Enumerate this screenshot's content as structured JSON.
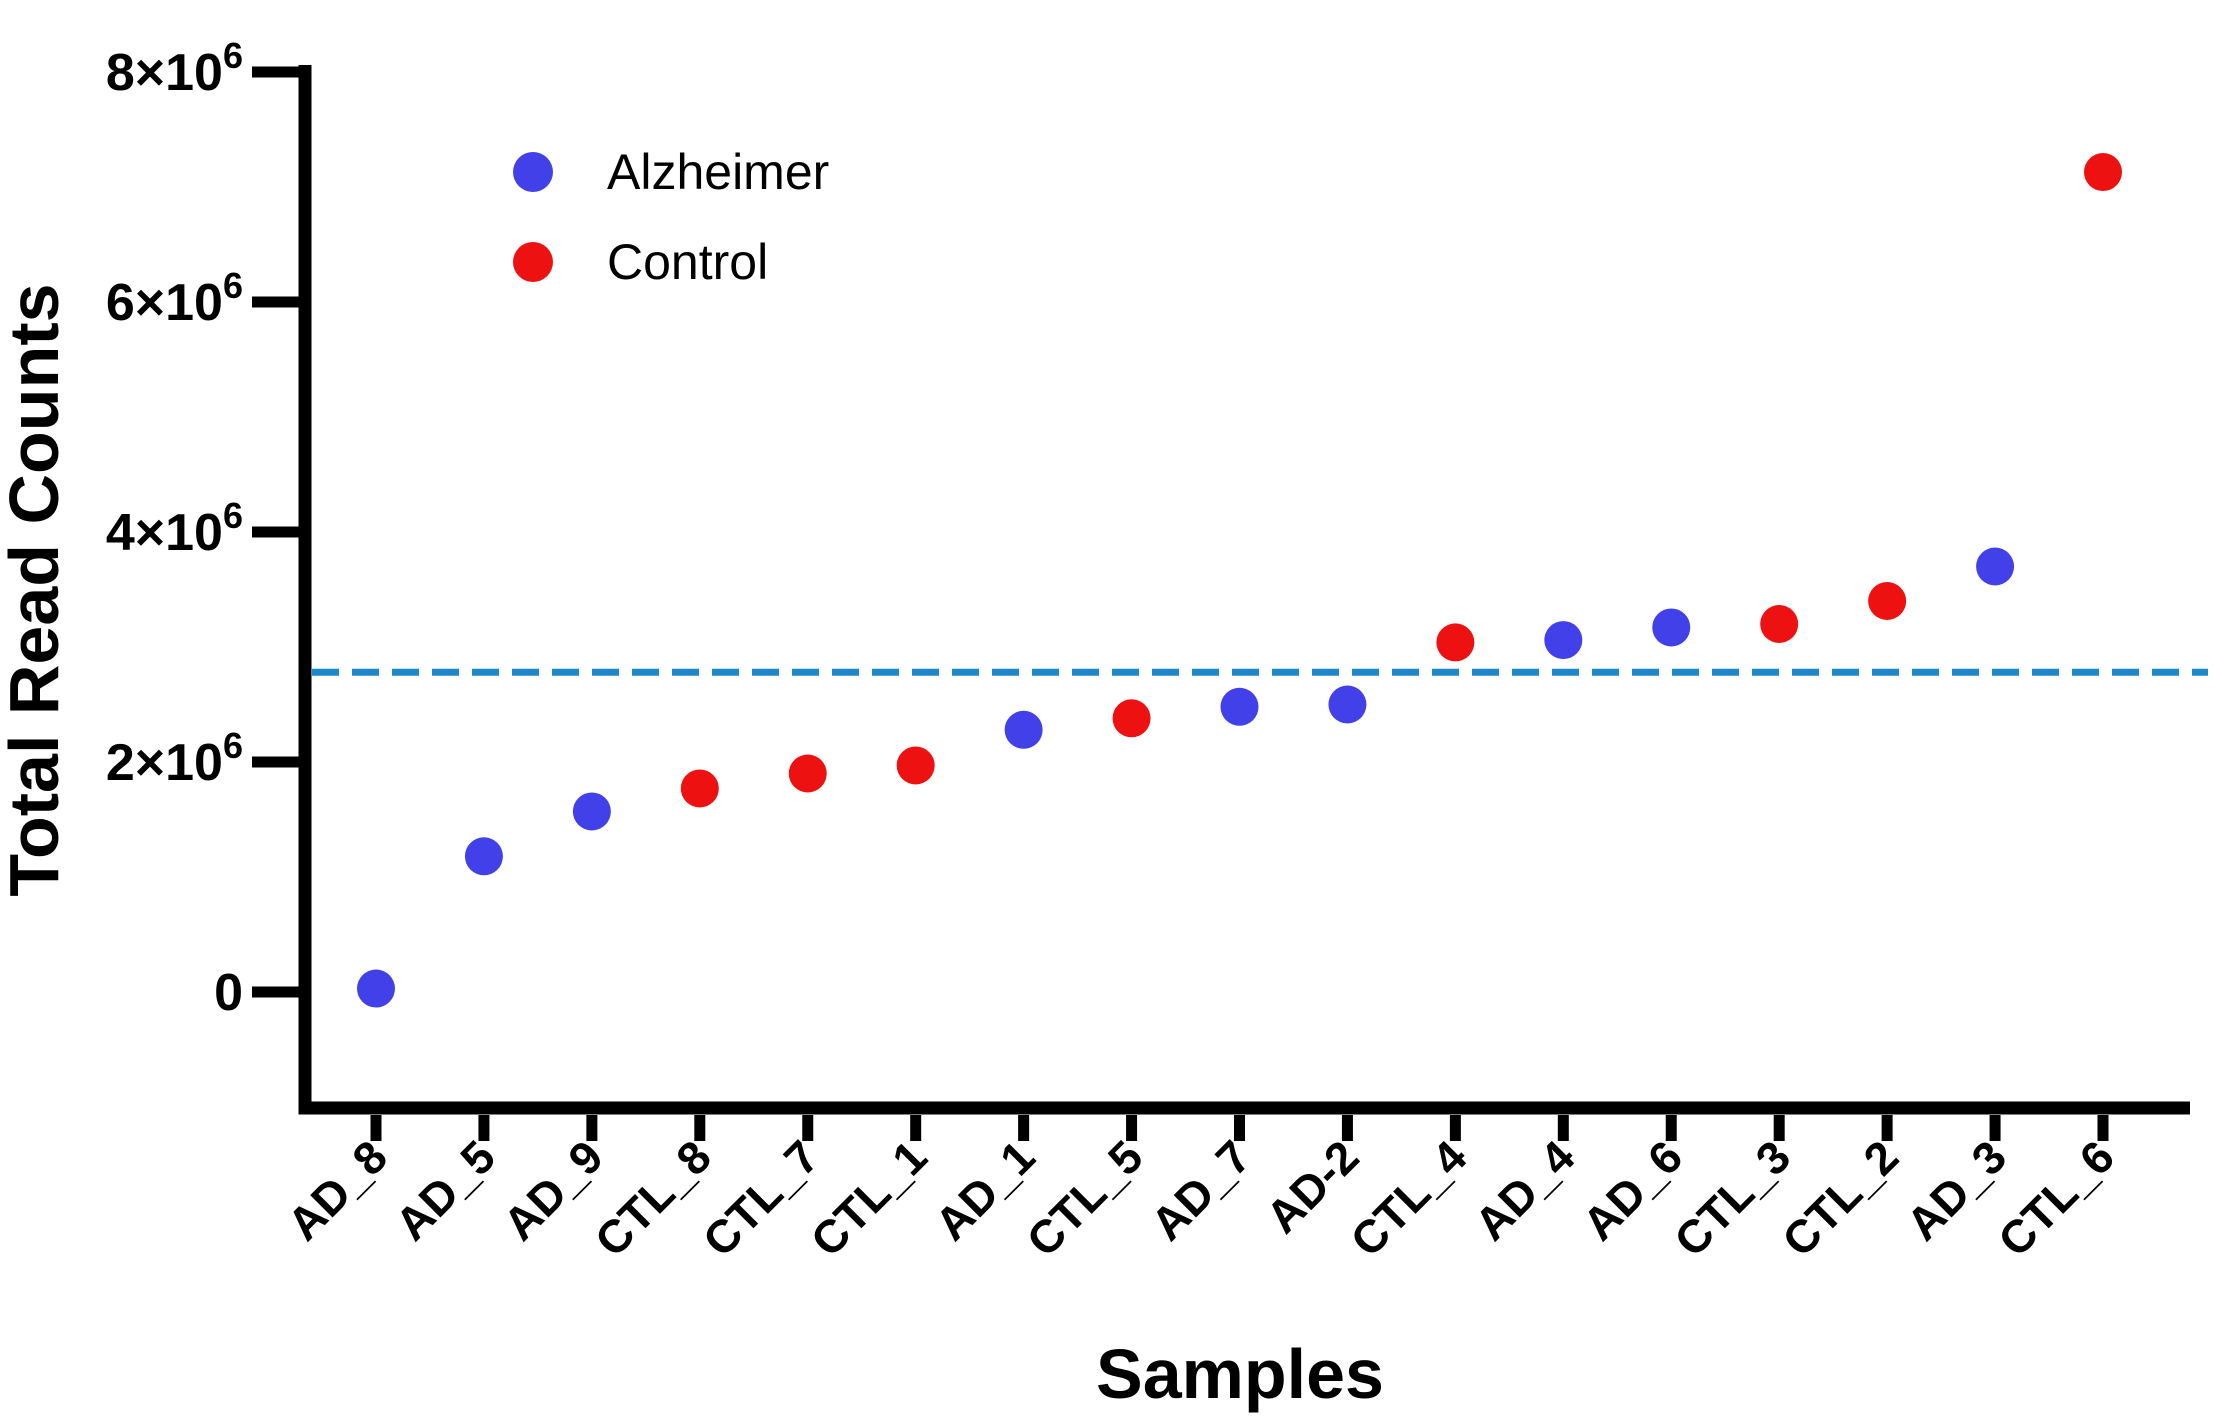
{
  "page": {
    "background": "#ffffff"
  },
  "y_axis": {
    "title": "Total Read Counts",
    "ticks": [
      {
        "value": 0,
        "base": "0",
        "superscript": ""
      },
      {
        "value": 2000000,
        "base": "2×10",
        "superscript": "6"
      },
      {
        "value": 4000000,
        "base": "4×10",
        "superscript": "6"
      },
      {
        "value": 6000000,
        "base": "6×10",
        "superscript": "6"
      },
      {
        "value": 8000000,
        "base": "8×10",
        "superscript": "6"
      }
    ]
  },
  "x_axis": {
    "title": "Samples"
  },
  "legend": {
    "items": [
      {
        "label": "Alzheimer",
        "color": "#4240e8"
      },
      {
        "label": "Control",
        "color": "#ee1111"
      }
    ]
  },
  "chart_data": {
    "type": "scatter",
    "title": "",
    "xlabel": "Samples",
    "ylabel": "Total Read Counts",
    "ylim": [
      -1000000,
      8000000
    ],
    "yticks": [
      0,
      2000000,
      4000000,
      6000000,
      8000000
    ],
    "grid": false,
    "legend_position": "upper-left-inside",
    "categories": [
      "AD_8",
      "AD_5",
      "AD_9",
      "CTL_8",
      "CTL_7",
      "CTL_1",
      "AD_1",
      "CTL_5",
      "AD_7",
      "AD-2",
      "CTL_4",
      "AD_4",
      "AD_6",
      "CTL_3",
      "CTL_2",
      "AD_3",
      "CTL_6"
    ],
    "group_colors": {
      "Alzheimer": "#4240e8",
      "Control": "#ee1111"
    },
    "points": [
      {
        "sample": "AD_8",
        "group": "Alzheimer",
        "value": 30000
      },
      {
        "sample": "AD_5",
        "group": "Alzheimer",
        "value": 1180000
      },
      {
        "sample": "AD_9",
        "group": "Alzheimer",
        "value": 1570000
      },
      {
        "sample": "CTL_8",
        "group": "Control",
        "value": 1770000
      },
      {
        "sample": "CTL_7",
        "group": "Control",
        "value": 1900000
      },
      {
        "sample": "CTL_1",
        "group": "Control",
        "value": 1970000
      },
      {
        "sample": "AD_1",
        "group": "Alzheimer",
        "value": 2280000
      },
      {
        "sample": "CTL_5",
        "group": "Control",
        "value": 2380000
      },
      {
        "sample": "AD_7",
        "group": "Alzheimer",
        "value": 2480000
      },
      {
        "sample": "AD-2",
        "group": "Alzheimer",
        "value": 2500000
      },
      {
        "sample": "CTL_4",
        "group": "Control",
        "value": 3040000
      },
      {
        "sample": "AD_4",
        "group": "Alzheimer",
        "value": 3060000
      },
      {
        "sample": "AD_6",
        "group": "Alzheimer",
        "value": 3170000
      },
      {
        "sample": "CTL_3",
        "group": "Control",
        "value": 3200000
      },
      {
        "sample": "CTL_2",
        "group": "Control",
        "value": 3400000
      },
      {
        "sample": "AD_3",
        "group": "Alzheimer",
        "value": 3700000
      },
      {
        "sample": "CTL_6",
        "group": "Control",
        "value": 7130000
      }
    ],
    "reference_line": {
      "value": 2780000,
      "color": "#1e87c9",
      "style": "dashed"
    }
  }
}
